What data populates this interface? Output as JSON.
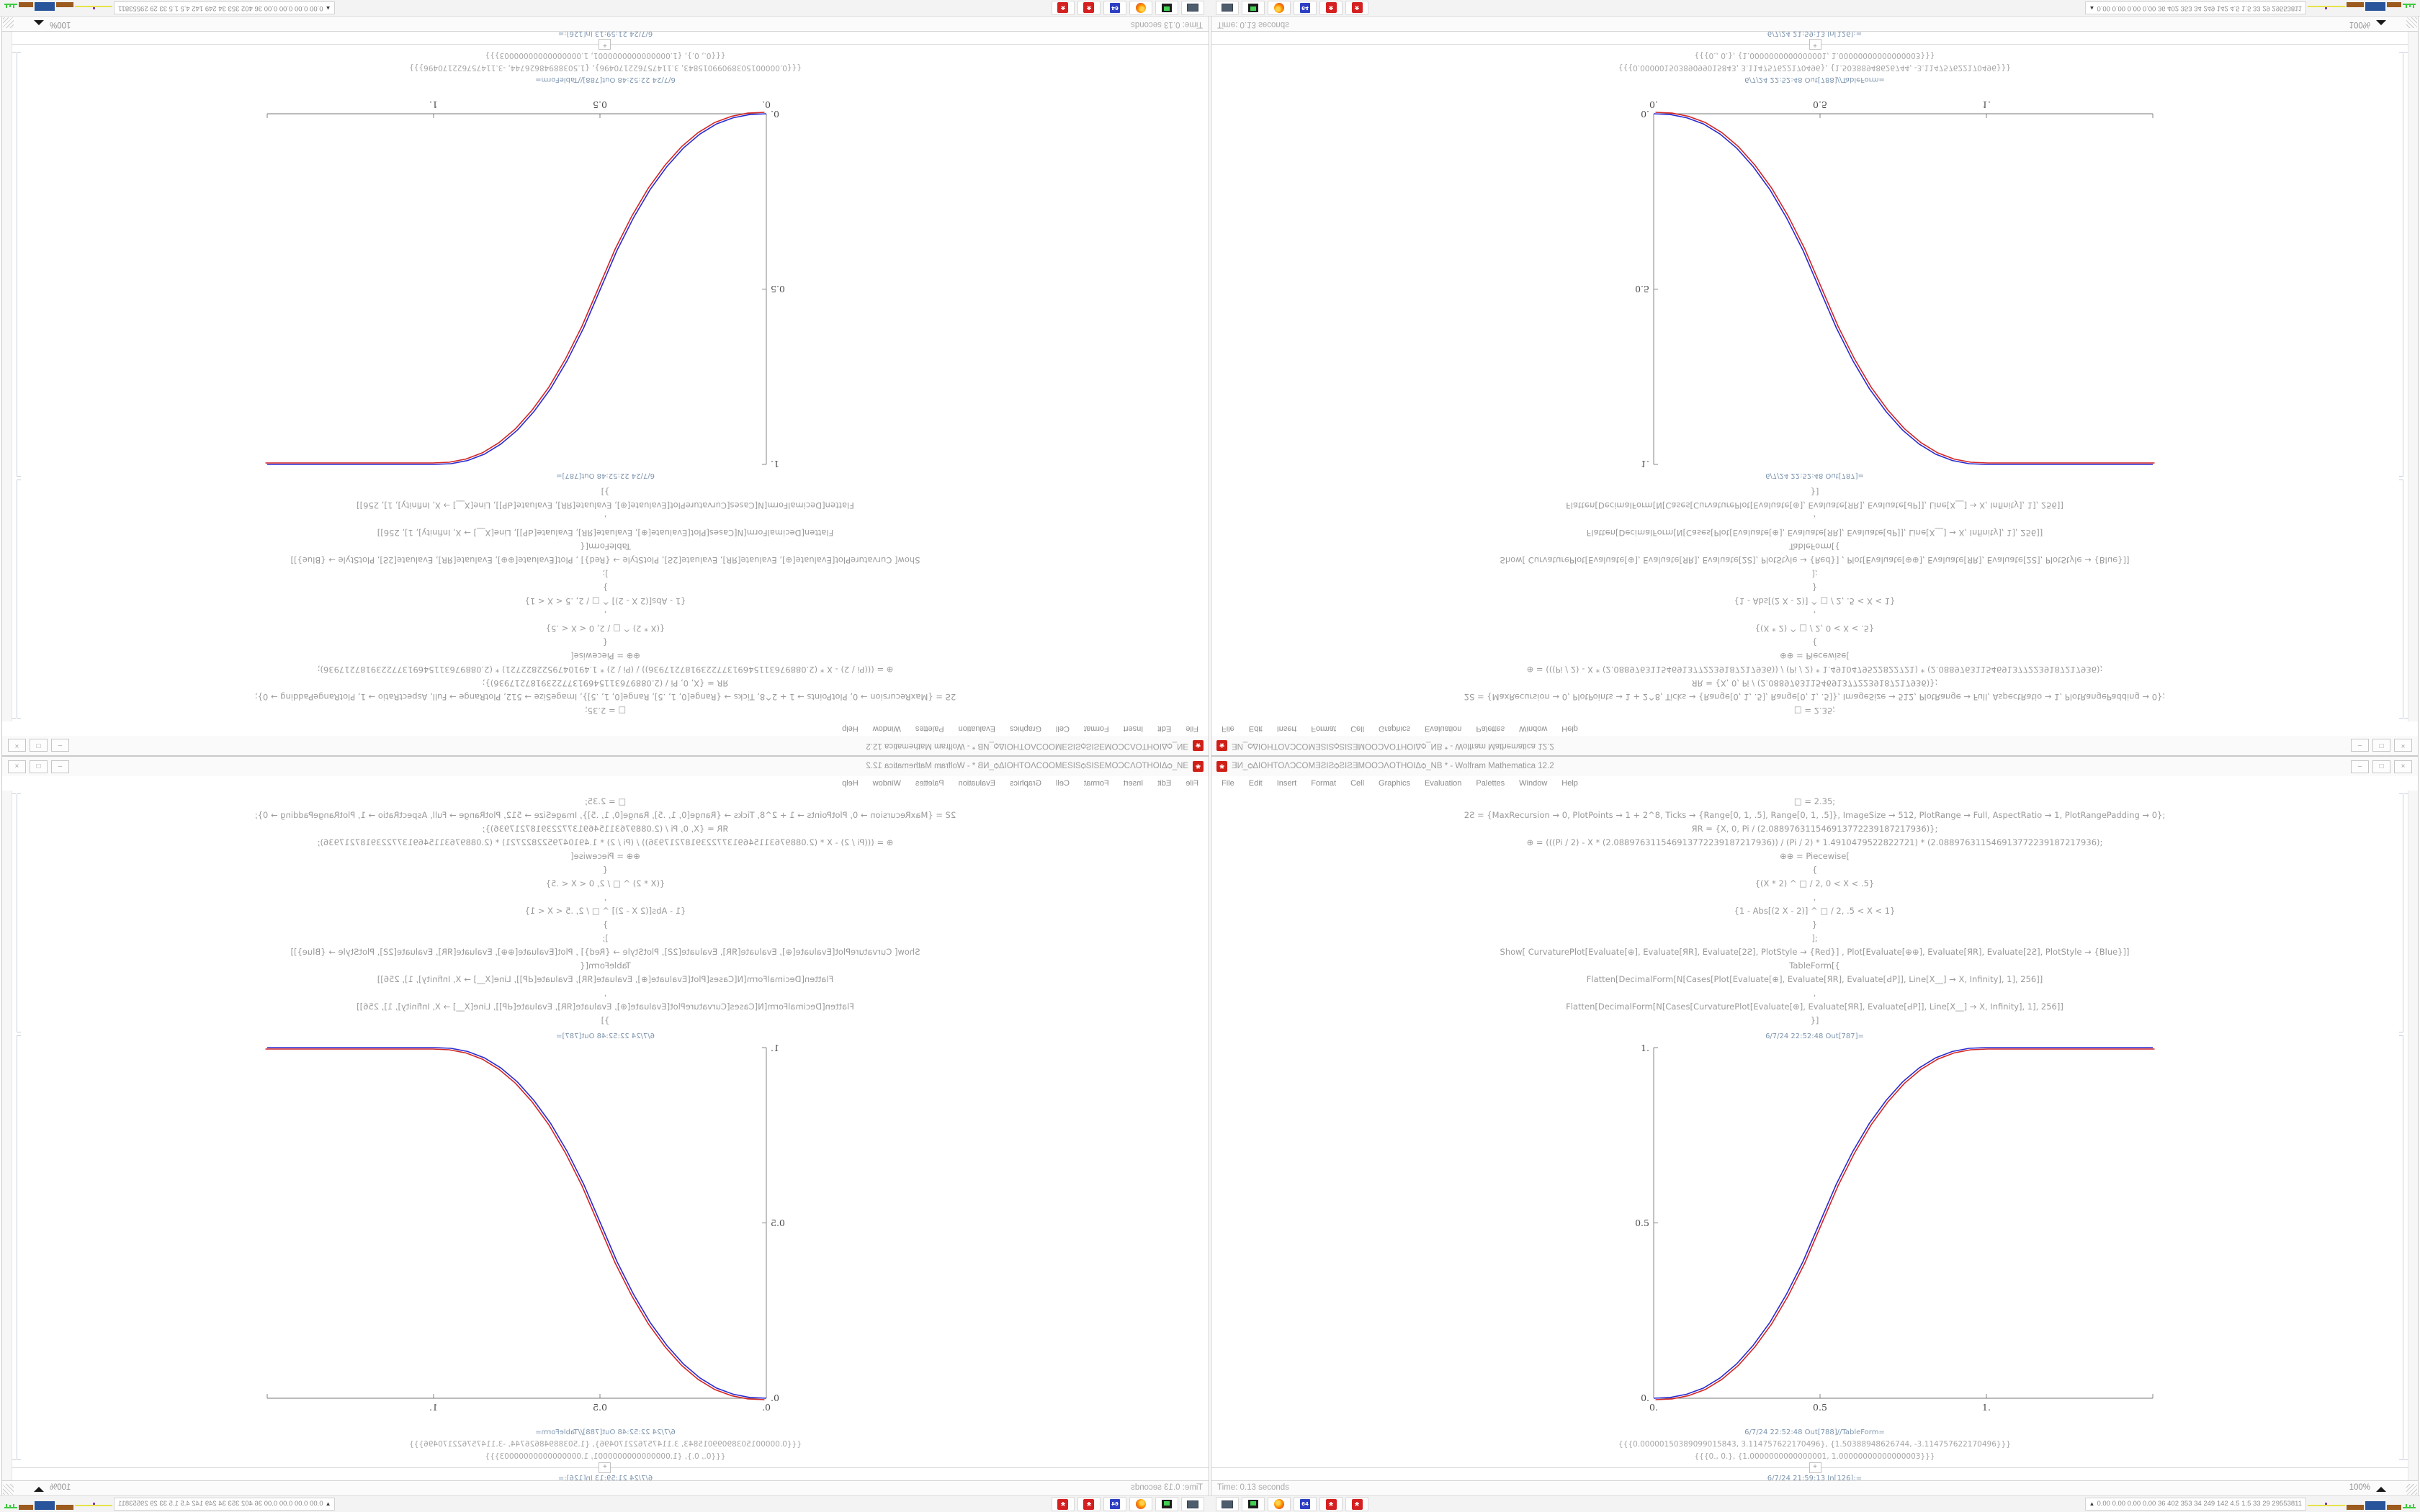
{
  "app": {
    "title": "ƎИ_ѻΔIOHTOΛϽCOMƎƧIƧѻƧIƧƎMOOϽΛOTHOIΔѻ_NB * - Wolfram Mathematica 12.2",
    "icon_glyph": "*",
    "window_controls": [
      "–",
      "□",
      "×"
    ]
  },
  "menu": {
    "items": [
      "File",
      "Edit",
      "Insert",
      "Format",
      "Cell",
      "Graphics",
      "Evaluation",
      "Palettes",
      "Window",
      "Help"
    ]
  },
  "notebook": {
    "input_lines": [
      "□ = 2.35;",
      "2Ƨ = {MaxRecursion → 0, PlotPoints → 1 + 2^8, Ticks → {Range[0, 1, .5], Range[0, 1, .5]}, ImageSize → 512, PlotRange → Full, AspectRatio → 1, PlotRangePadding → 0};",
      "ЯR = {X, 0, Pi / (2.088976311546913772239187217936)};",
      "⊕ = (((Pi / 2) - X * (2.088976311546913772239187217936)) / (Pi / 2) * 1.4910479522822721) * (2.088976311546913772239187217936);",
      "⊕⊕ = Piecewise[",
      "{",
      "{(X * 2) ^ □ / 2, 0 < X < .5}",
      ",",
      "{1 - Abs[(2 X - 2)] ^ □ / 2, .5 < X < 1}",
      "}",
      "];",
      "Show[   CurvaturePlot[Evaluate[⊕], Evaluate[ЯR], Evaluate[2Ƨ], PlotStyle → {Red}]   ,   Plot[Evaluate[⊕⊕], Evaluate[ЯR], Evaluate[2Ƨ], PlotStyle → {Blue}]]",
      "TableForm[{",
      "Flatten[DecimalForm[N[Cases[Plot[Evaluate[⊕], Evaluate[ЯR], Evaluate[ԀP]], Line[X__] → X, Infinity], 1], 256]]",
      ",",
      "Flatten[DecimalForm[N[Cases[CurvaturePlot[Evaluate[⊕], Evaluate[ЯR], Evaluate[ԀP]], Line[X__] → X, Infinity], 1], 256]]",
      "}]"
    ],
    "out_plot_label": "6/7/24 22:52:48 Out[787]=",
    "out_table_label": "6/7/24 22:52:48 Out[788]//TableForm=",
    "table_rows": [
      "{{{0.00000150389099015843, 3.114757622170496}, {1.50388948626744, -3.114757622170496}}}",
      "{{{0., 0.}, {1.0000000000000001, 1.00000000000000003}}}"
    ],
    "insert_plus": "+",
    "next_in_label": "6/7/24 21:59:13 In[126]:="
  },
  "status": {
    "left": "Time: 0.13 seconds",
    "zoom": "100%"
  },
  "taskbar": {
    "apps": [
      "screenshot-tool",
      "system-monitor",
      "firefox",
      "floppy-64",
      "mathematica",
      "mathematica"
    ],
    "floppy_label": "64",
    "gear_glyph": "*",
    "tray_arrow": "▲",
    "tray_text": "0.00 0.00 0.00 0.00 36 402 353 34 249 142 4.5 1.5 33 29 29553811",
    "graph_segments": [
      {
        "x": 0,
        "w": 52,
        "h": 2,
        "b": 5,
        "c": "#e6e34a"
      },
      {
        "x": 24,
        "w": 3,
        "h": 3,
        "b": 7,
        "c": "#8636a8"
      },
      {
        "x": 54,
        "w": 24,
        "h": 7,
        "b": 0,
        "c": "#9c5a1e"
      },
      {
        "x": 80,
        "w": 28,
        "h": 12,
        "b": 0,
        "c": "#27549b"
      },
      {
        "x": 110,
        "w": 20,
        "h": 7,
        "b": 0,
        "c": "#9c5a1e"
      },
      {
        "x": 132,
        "w": 18,
        "h": 2,
        "b": 2,
        "c": "#3ecb3e"
      },
      {
        "x": 136,
        "w": 2,
        "h": 6,
        "b": 2,
        "c": "#3ecb3e"
      },
      {
        "x": 141,
        "w": 2,
        "h": 5,
        "b": 2,
        "c": "#3ecb3e"
      },
      {
        "x": 146,
        "w": 2,
        "h": 6,
        "b": 2,
        "c": "#3ecb3e"
      }
    ]
  },
  "chart_data": {
    "type": "line",
    "title": "",
    "xlabel": "",
    "ylabel": "",
    "xlim": [
      0,
      1.5038
    ],
    "ylim": [
      0,
      1
    ],
    "grid": false,
    "legend": false,
    "xticks": {
      "values": [
        0,
        0.5,
        1
      ],
      "labels": [
        "0.",
        "0.5",
        "1."
      ]
    },
    "yticks": {
      "values": [
        0,
        0.5,
        1
      ],
      "labels": [
        "0.",
        "0.5",
        "1."
      ]
    },
    "series": [
      {
        "name": "CurvaturePlot[⊕] (Red)",
        "color": "#d42525"
      },
      {
        "name": "Plot[⊕⊕] (Blue)",
        "color": "#2a2ad0"
      }
    ],
    "points": [
      [
        0,
        0
      ],
      [
        0.05,
        0.0022
      ],
      [
        0.1,
        0.0114
      ],
      [
        0.15,
        0.029
      ],
      [
        0.2,
        0.058
      ],
      [
        0.25,
        0.098
      ],
      [
        0.3,
        0.151
      ],
      [
        0.35,
        0.216
      ],
      [
        0.4,
        0.296
      ],
      [
        0.45,
        0.39
      ],
      [
        0.5,
        0.5
      ],
      [
        0.55,
        0.61
      ],
      [
        0.6,
        0.704
      ],
      [
        0.65,
        0.784
      ],
      [
        0.7,
        0.849
      ],
      [
        0.75,
        0.902
      ],
      [
        0.8,
        0.942
      ],
      [
        0.85,
        0.971
      ],
      [
        0.9,
        0.989
      ],
      [
        0.95,
        0.998
      ],
      [
        1,
        1
      ],
      [
        1.1,
        1
      ],
      [
        1.2,
        1
      ],
      [
        1.3,
        1
      ],
      [
        1.4,
        1
      ],
      [
        1.5038,
        1
      ]
    ]
  }
}
